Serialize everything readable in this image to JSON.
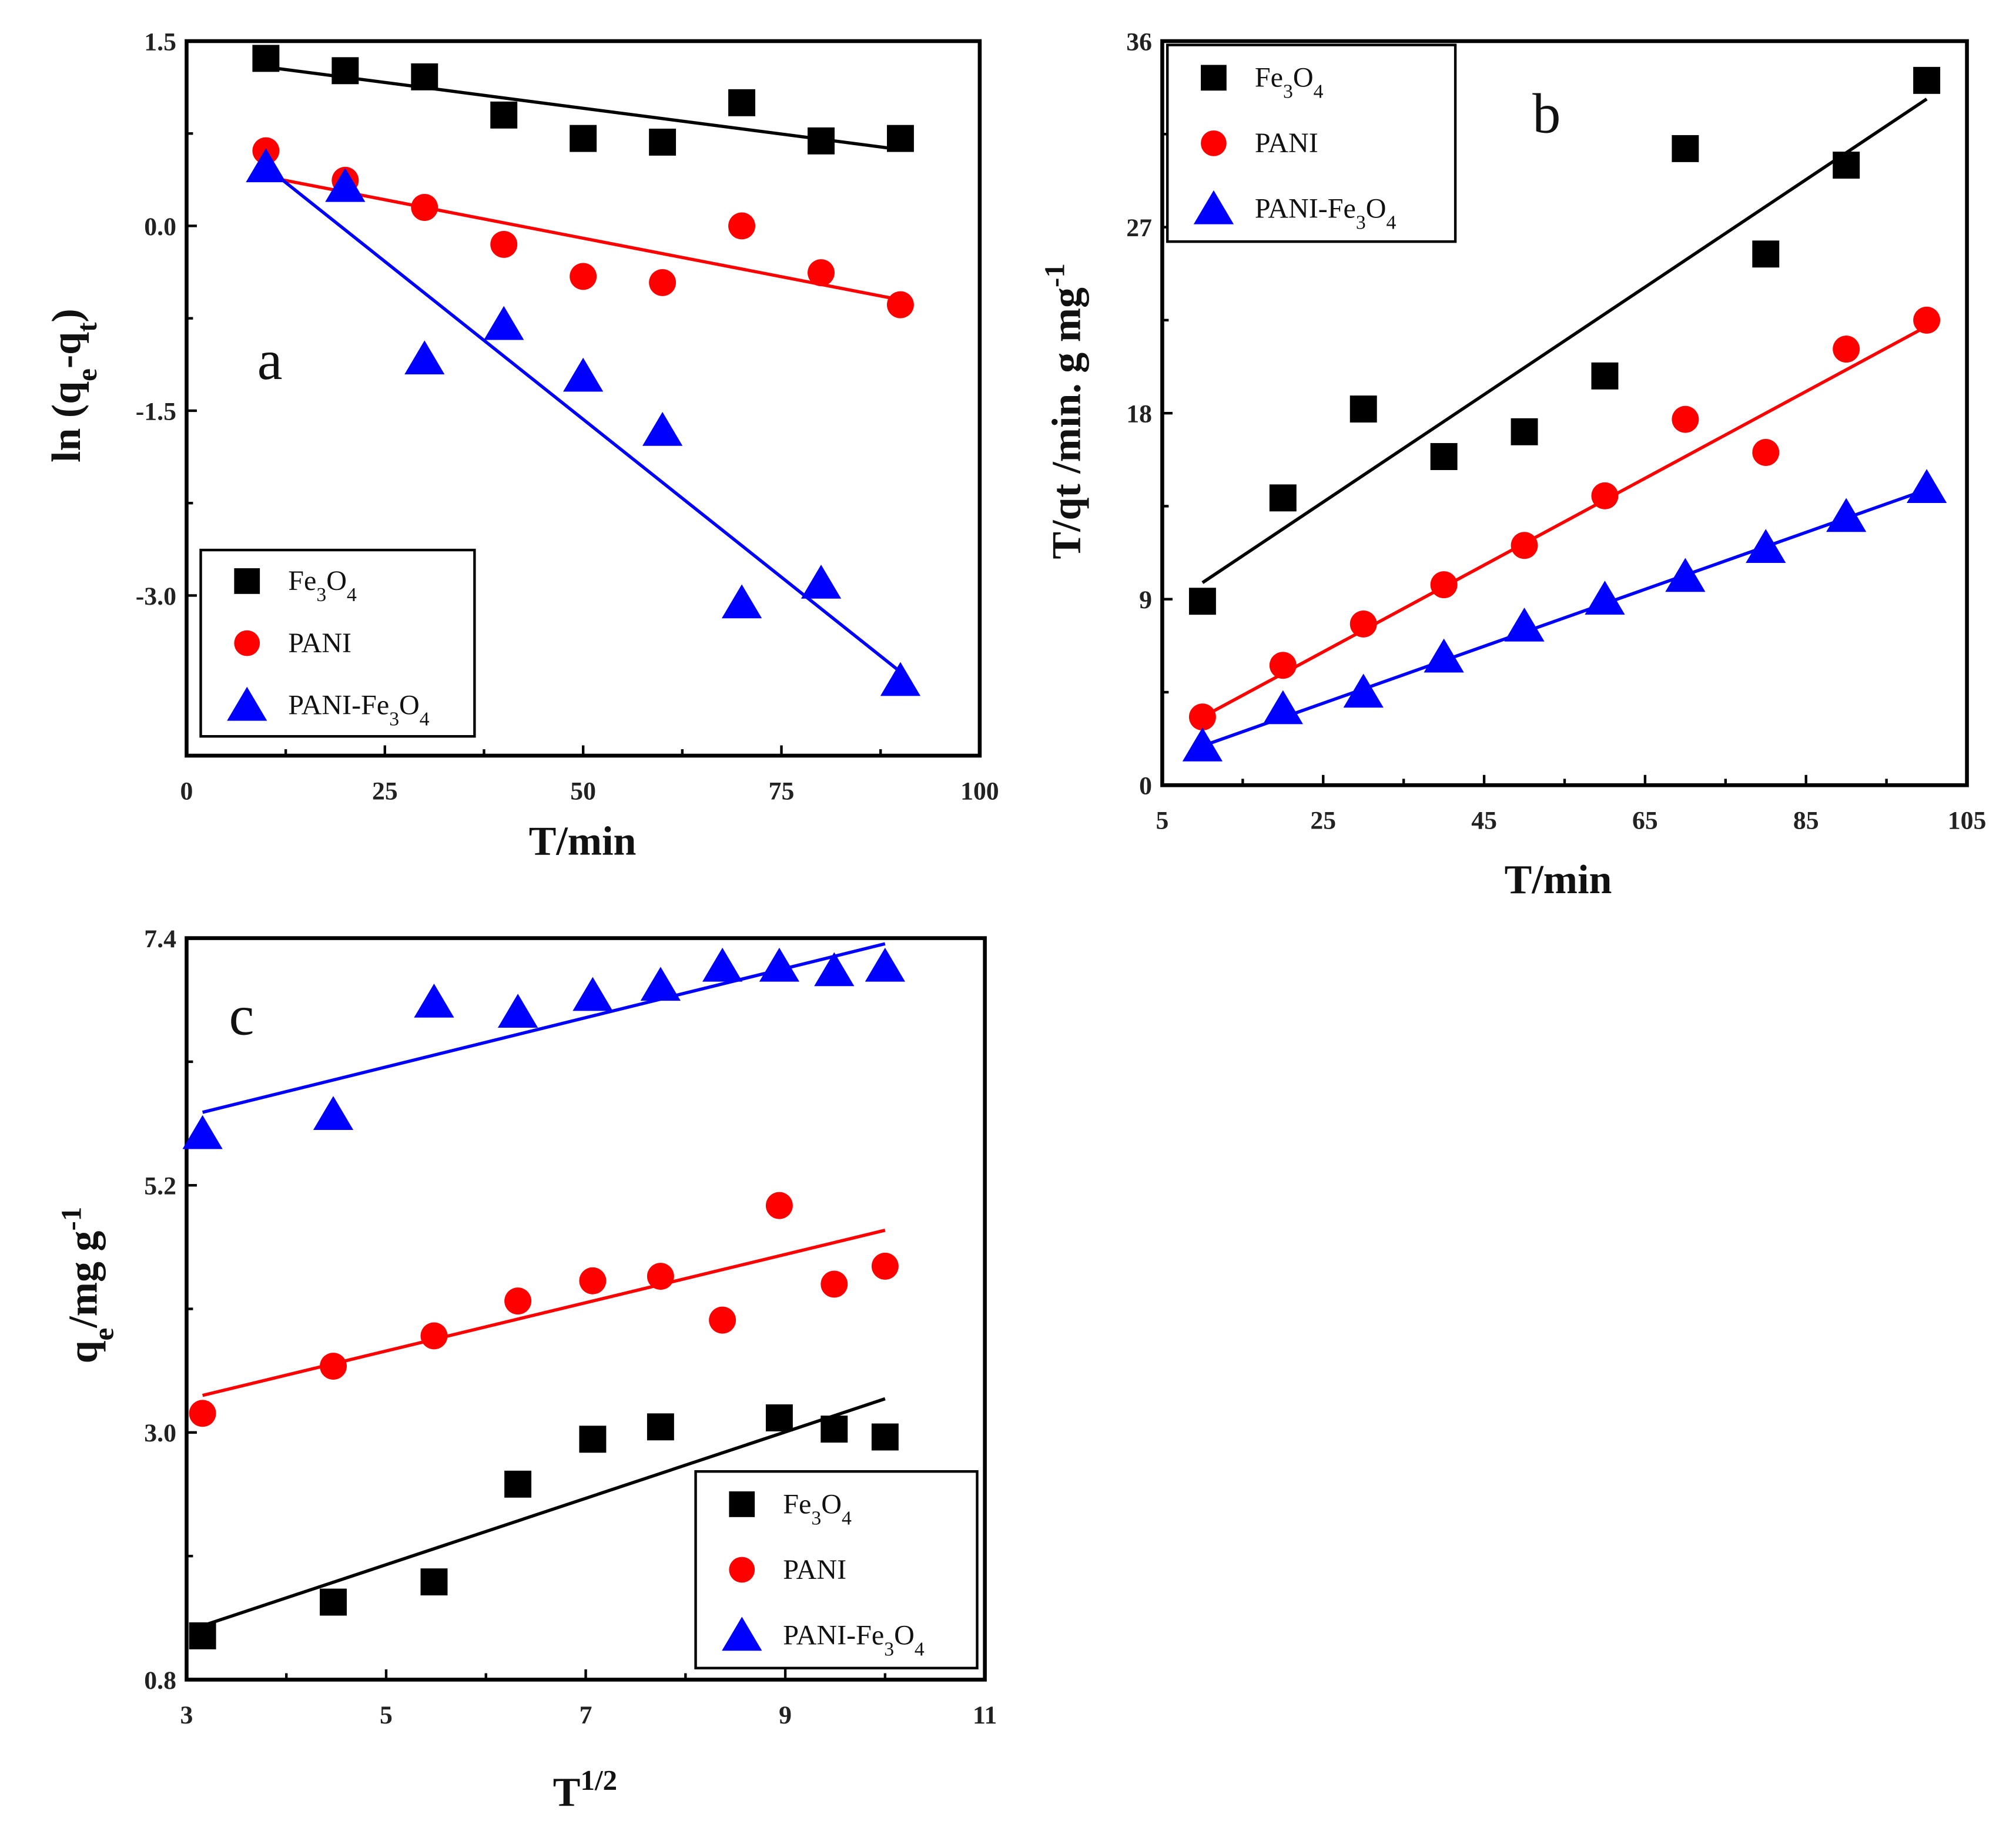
{
  "series_styles": [
    {
      "name": "Fe3O4",
      "color": "#000000",
      "marker": "square"
    },
    {
      "name": "PANI",
      "color": "#ff0000",
      "marker": "circle"
    },
    {
      "name": "PANI-Fe3O4",
      "color": "#0000ff",
      "marker": "triangle"
    }
  ],
  "legend_text": {
    "fe": {
      "a": "Fe",
      "s1": "3",
      "b": "O",
      "s2": "4"
    },
    "pani": "PANI",
    "pf": {
      "a": "PANI-Fe",
      "s1": "3",
      "b": "O",
      "s2": "4"
    }
  },
  "chart_data": [
    {
      "id": "a",
      "type": "scatter",
      "panel_label": "a",
      "xlabel": "T/min",
      "ylabel": {
        "main": "ln (q",
        "sub1": "e",
        "mid": "-q",
        "sub2": "t",
        "end": ")"
      },
      "xlim": [
        0,
        100
      ],
      "ylim": [
        -4.3,
        1.5
      ],
      "xticks": [
        0,
        25,
        50,
        75,
        100
      ],
      "xtick_labels": [
        "0",
        "25",
        "50",
        "75",
        "100"
      ],
      "yticks": [
        1.5,
        0.0,
        -1.5,
        -3.0
      ],
      "ytick_labels": [
        "1.5",
        "0.0",
        "-1.5",
        "-3.0"
      ],
      "legend": "bottom-left",
      "series": [
        {
          "name": "Fe3O4",
          "x": [
            10,
            20,
            30,
            40,
            50,
            60,
            70,
            80,
            90
          ],
          "y": [
            1.36,
            1.26,
            1.21,
            0.9,
            0.71,
            0.68,
            1.0,
            0.69,
            0.71
          ],
          "fit": [
            [
              10,
              1.29
            ],
            [
              90,
              0.62
            ]
          ]
        },
        {
          "name": "PANI",
          "x": [
            10,
            20,
            30,
            40,
            50,
            60,
            70,
            80,
            90
          ],
          "y": [
            0.61,
            0.37,
            0.15,
            -0.15,
            -0.41,
            -0.46,
            0.0,
            -0.38,
            -0.64
          ],
          "fit": [
            [
              10,
              0.4
            ],
            [
              90,
              -0.6
            ]
          ]
        },
        {
          "name": "PANI-Fe3O4",
          "x": [
            10,
            20,
            30,
            40,
            50,
            60,
            70,
            80,
            90
          ],
          "y": [
            0.48,
            0.32,
            -1.08,
            -0.8,
            -1.22,
            -1.66,
            -3.06,
            -2.9,
            -3.69
          ],
          "fit": [
            [
              10,
              0.48
            ],
            [
              90,
              -3.62
            ]
          ]
        }
      ]
    },
    {
      "id": "b",
      "type": "scatter",
      "panel_label": "b",
      "xlabel": "T/min",
      "ylabel": {
        "main": "T/qt /min. g mg",
        "sup": "-1"
      },
      "xlim": [
        5,
        105
      ],
      "ylim": [
        0,
        36
      ],
      "xticks": [
        5,
        25,
        45,
        65,
        85,
        105
      ],
      "xtick_labels": [
        "5",
        "25",
        "45",
        "65",
        "85",
        "105"
      ],
      "yticks": [
        0,
        9,
        18,
        27,
        36
      ],
      "ytick_labels": [
        "0",
        "9",
        "18",
        "27",
        "36"
      ],
      "legend": "top-left",
      "series": [
        {
          "name": "Fe3O4",
          "x": [
            10,
            20,
            30,
            40,
            50,
            60,
            70,
            80,
            90,
            100
          ],
          "y": [
            8.9,
            13.9,
            18.2,
            15.9,
            17.1,
            19.8,
            30.8,
            25.7,
            30.0,
            34.1
          ],
          "fit": [
            [
              10,
              9.8
            ],
            [
              100,
              33.2
            ]
          ]
        },
        {
          "name": "PANI",
          "x": [
            10,
            20,
            30,
            40,
            50,
            60,
            70,
            80,
            90,
            100
          ],
          "y": [
            3.3,
            5.8,
            7.8,
            9.7,
            11.6,
            14.0,
            17.7,
            16.1,
            21.1,
            22.5
          ],
          "fit": [
            [
              10,
              3.3
            ],
            [
              100,
              22.2
            ]
          ]
        },
        {
          "name": "PANI-Fe3O4",
          "x": [
            10,
            20,
            30,
            40,
            50,
            60,
            70,
            80,
            90,
            100
          ],
          "y": [
            1.9,
            3.7,
            4.5,
            6.2,
            7.7,
            9.0,
            10.1,
            11.5,
            13.0,
            14.4
          ],
          "fit": [
            [
              10,
              1.9
            ],
            [
              100,
              14.3
            ]
          ]
        }
      ]
    },
    {
      "id": "c",
      "type": "scatter",
      "panel_label": "c",
      "xlabel": {
        "main": "T",
        "sup": "1/2"
      },
      "ylabel": {
        "main": "q",
        "sub": "e",
        "end": "/mg g",
        "sup": "-1"
      },
      "xlim": [
        3,
        11
      ],
      "ylim": [
        0.8,
        7.4
      ],
      "xticks": [
        3,
        5,
        7,
        9,
        11
      ],
      "xtick_labels": [
        "3",
        "5",
        "7",
        "9",
        "11"
      ],
      "yticks": [
        0.8,
        3.0,
        5.2,
        7.4
      ],
      "ytick_labels": [
        "0.8",
        "3.0",
        "5.2",
        "7.4"
      ],
      "legend": "bottom-right",
      "series": [
        {
          "name": "Fe3O4",
          "x": [
            3.16,
            4.47,
            5.48,
            6.32,
            7.07,
            7.75,
            8.94,
            9.49,
            10
          ],
          "y": [
            1.19,
            1.49,
            1.67,
            2.54,
            2.94,
            3.05,
            3.13,
            3.03,
            2.96
          ],
          "fit": [
            [
              3.16,
              1.28
            ],
            [
              10,
              3.3
            ]
          ]
        },
        {
          "name": "PANI",
          "x": [
            3.16,
            4.47,
            5.48,
            6.32,
            7.07,
            7.75,
            8.37,
            8.94,
            9.49,
            10
          ],
          "y": [
            3.17,
            3.59,
            3.86,
            4.17,
            4.35,
            4.39,
            4.0,
            5.02,
            4.32,
            4.48
          ],
          "fit": [
            [
              3.16,
              3.33
            ],
            [
              10,
              4.8
            ]
          ]
        },
        {
          "name": "PANI-Fe3O4",
          "x": [
            3.16,
            4.47,
            5.48,
            6.32,
            7.07,
            7.75,
            8.37,
            8.94,
            9.49,
            10
          ],
          "y": [
            5.66,
            5.83,
            6.83,
            6.74,
            6.89,
            6.98,
            7.15,
            7.15,
            7.11,
            7.15
          ],
          "fit": [
            [
              3.16,
              5.85
            ],
            [
              10,
              7.35
            ]
          ]
        }
      ]
    }
  ]
}
